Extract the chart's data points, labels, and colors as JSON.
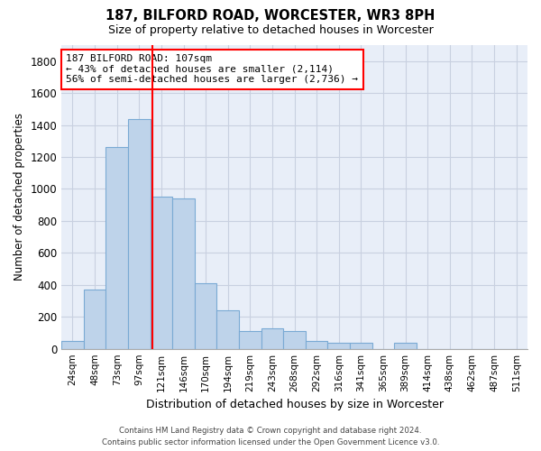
{
  "title1": "187, BILFORD ROAD, WORCESTER, WR3 8PH",
  "title2": "Size of property relative to detached houses in Worcester",
  "xlabel": "Distribution of detached houses by size in Worcester",
  "ylabel": "Number of detached properties",
  "bar_color": "#bed3ea",
  "bar_edge_color": "#7aaad4",
  "background_color": "#e8eef8",
  "grid_color": "#c8d0e0",
  "categories": [
    "24sqm",
    "48sqm",
    "73sqm",
    "97sqm",
    "121sqm",
    "146sqm",
    "170sqm",
    "194sqm",
    "219sqm",
    "243sqm",
    "268sqm",
    "292sqm",
    "316sqm",
    "341sqm",
    "365sqm",
    "389sqm",
    "414sqm",
    "438sqm",
    "462sqm",
    "487sqm",
    "511sqm"
  ],
  "values": [
    50,
    370,
    1260,
    1440,
    950,
    940,
    410,
    240,
    110,
    130,
    110,
    50,
    40,
    40,
    0,
    40,
    0,
    0,
    0,
    0,
    0
  ],
  "ylim": [
    0,
    1900
  ],
  "yticks": [
    0,
    200,
    400,
    600,
    800,
    1000,
    1200,
    1400,
    1600,
    1800
  ],
  "red_line_x": 3.58,
  "annotation_box_text": "187 BILFORD ROAD: 107sqm\n← 43% of detached houses are smaller (2,114)\n56% of semi-detached houses are larger (2,736) →",
  "footer_line1": "Contains HM Land Registry data © Crown copyright and database right 2024.",
  "footer_line2": "Contains public sector information licensed under the Open Government Licence v3.0."
}
